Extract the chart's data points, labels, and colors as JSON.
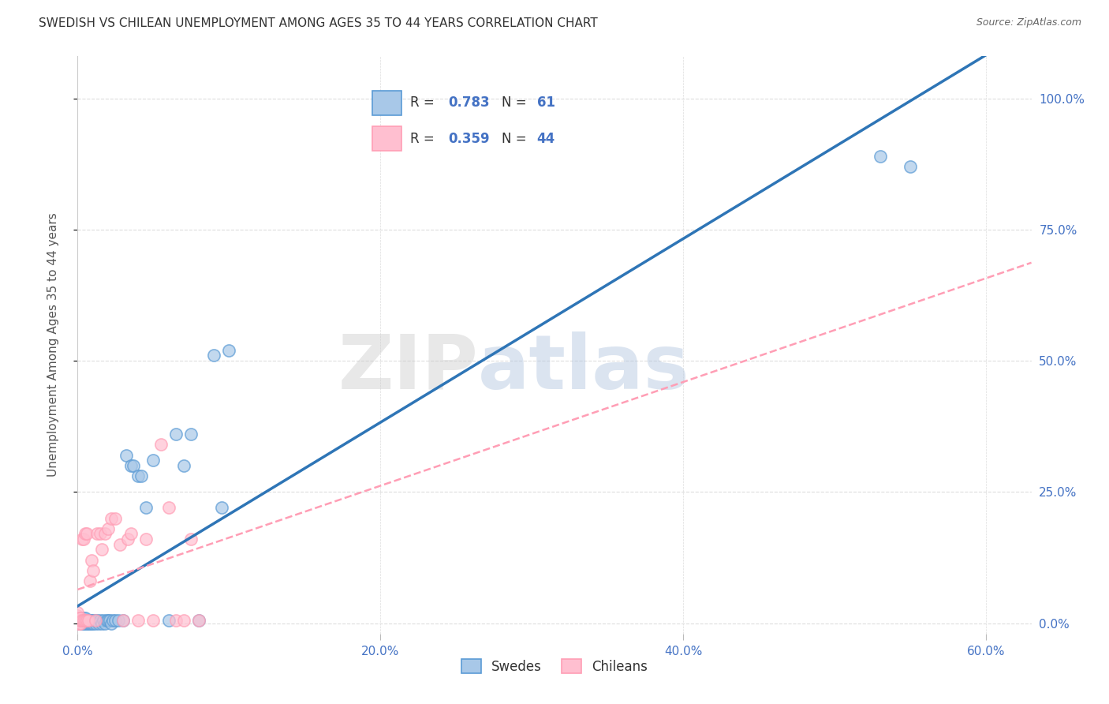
{
  "title": "SWEDISH VS CHILEAN UNEMPLOYMENT AMONG AGES 35 TO 44 YEARS CORRELATION CHART",
  "source": "Source: ZipAtlas.com",
  "ylabel": "Unemployment Among Ages 35 to 44 years",
  "xlim": [
    0.0,
    0.63
  ],
  "ylim": [
    -0.02,
    1.08
  ],
  "legend1_R": "0.783",
  "legend1_N": "61",
  "legend2_R": "0.359",
  "legend2_N": "44",
  "color_blue_fill": "#A8C8E8",
  "color_blue_edge": "#5B9BD5",
  "color_pink_fill": "#FFBFD0",
  "color_pink_edge": "#FF9EB5",
  "color_blue_line": "#2E75B6",
  "color_pink_line": "#FF9EB5",
  "color_label": "#4472C4",
  "swedes_x": [
    0.0,
    0.0,
    0.0,
    0.001,
    0.001,
    0.001,
    0.002,
    0.002,
    0.002,
    0.003,
    0.003,
    0.003,
    0.004,
    0.004,
    0.004,
    0.005,
    0.005,
    0.005,
    0.006,
    0.006,
    0.007,
    0.007,
    0.008,
    0.008,
    0.009,
    0.009,
    0.01,
    0.01,
    0.012,
    0.012,
    0.013,
    0.014,
    0.015,
    0.016,
    0.017,
    0.018,
    0.019,
    0.02,
    0.021,
    0.022,
    0.023,
    0.025,
    0.027,
    0.03,
    0.032,
    0.035,
    0.037,
    0.04,
    0.042,
    0.045,
    0.05,
    0.06,
    0.065,
    0.07,
    0.075,
    0.08,
    0.09,
    0.095,
    0.1,
    0.53,
    0.55
  ],
  "swedes_y": [
    0.0,
    0.005,
    0.01,
    0.0,
    0.005,
    0.01,
    0.0,
    0.005,
    0.01,
    0.0,
    0.005,
    0.01,
    0.0,
    0.005,
    0.01,
    0.0,
    0.005,
    0.01,
    0.0,
    0.005,
    0.0,
    0.005,
    0.0,
    0.005,
    0.0,
    0.005,
    0.0,
    0.005,
    0.0,
    0.005,
    0.005,
    0.0,
    0.005,
    0.0,
    0.005,
    0.0,
    0.005,
    0.005,
    0.005,
    0.0,
    0.005,
    0.005,
    0.005,
    0.005,
    0.32,
    0.3,
    0.3,
    0.28,
    0.28,
    0.22,
    0.31,
    0.005,
    0.36,
    0.3,
    0.36,
    0.005,
    0.51,
    0.22,
    0.52,
    0.89,
    0.87
  ],
  "chileans_x": [
    0.0,
    0.0,
    0.0,
    0.0,
    0.0,
    0.001,
    0.001,
    0.001,
    0.002,
    0.002,
    0.002,
    0.003,
    0.003,
    0.004,
    0.004,
    0.005,
    0.005,
    0.006,
    0.006,
    0.007,
    0.008,
    0.009,
    0.01,
    0.012,
    0.013,
    0.015,
    0.016,
    0.018,
    0.02,
    0.022,
    0.025,
    0.028,
    0.03,
    0.033,
    0.035,
    0.04,
    0.045,
    0.05,
    0.055,
    0.06,
    0.065,
    0.07,
    0.075,
    0.08
  ],
  "chileans_y": [
    0.0,
    0.005,
    0.01,
    0.015,
    0.02,
    0.0,
    0.005,
    0.01,
    0.0,
    0.005,
    0.01,
    0.005,
    0.16,
    0.005,
    0.16,
    0.005,
    0.17,
    0.005,
    0.17,
    0.005,
    0.08,
    0.12,
    0.1,
    0.005,
    0.17,
    0.17,
    0.14,
    0.17,
    0.18,
    0.2,
    0.2,
    0.15,
    0.005,
    0.16,
    0.17,
    0.005,
    0.16,
    0.005,
    0.34,
    0.22,
    0.005,
    0.005,
    0.16,
    0.005
  ],
  "watermark_zip": "ZIP",
  "watermark_atlas": "atlas",
  "background_color": "#FFFFFF",
  "grid_color": "#DDDDDD"
}
